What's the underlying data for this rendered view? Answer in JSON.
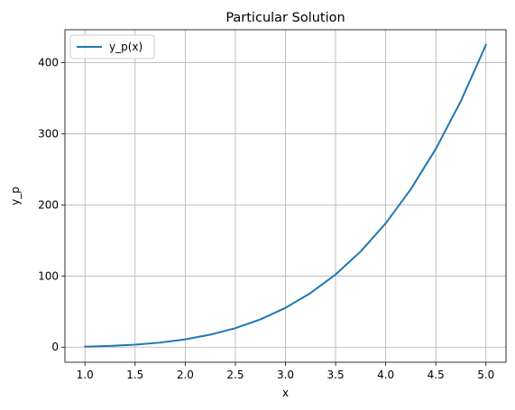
{
  "chart_data": {
    "type": "line",
    "title": "Particular Solution",
    "xlabel": "x",
    "ylabel": "y_p",
    "xlim": [
      0.8,
      5.2
    ],
    "ylim": [
      -21.25,
      446.25
    ],
    "xticks": [
      1.0,
      1.5,
      2.0,
      2.5,
      3.0,
      3.5,
      4.0,
      4.5,
      5.0
    ],
    "xtick_labels": [
      "1.0",
      "1.5",
      "2.0",
      "2.5",
      "3.0",
      "3.5",
      "4.0",
      "4.5",
      "5.0"
    ],
    "yticks": [
      0,
      100,
      200,
      300,
      400
    ],
    "ytick_labels": [
      "0",
      "100",
      "200",
      "300",
      "400"
    ],
    "grid": true,
    "legend_position": "top-left",
    "series": [
      {
        "name": "y_p(x)",
        "color": "#1f77b4",
        "x": [
          1.0,
          1.25,
          1.5,
          1.75,
          2.0,
          2.25,
          2.5,
          2.75,
          3.0,
          3.25,
          3.5,
          3.75,
          4.0,
          4.25,
          4.5,
          4.75,
          5.0
        ],
        "y": [
          0.68,
          1.66,
          3.44,
          6.38,
          10.9,
          17.5,
          26.6,
          39.0,
          55.2,
          76.0,
          102.1,
          134.5,
          174.1,
          221.9,
          278.8,
          345.9,
          425.0
        ]
      }
    ]
  }
}
